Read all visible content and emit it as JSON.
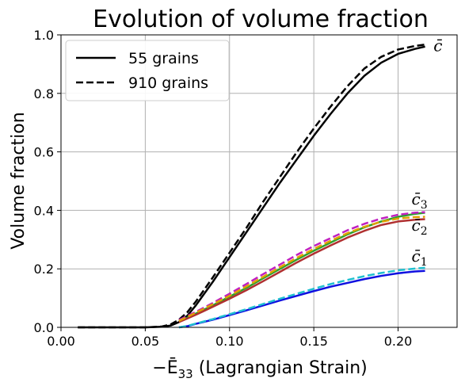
{
  "chart_data": {
    "type": "line",
    "title": "Evolution of volume fraction",
    "xlabel_prefix": "−Ē",
    "xlabel_sub": "33",
    "xlabel_suffix": " (Lagrangian Strain)",
    "ylabel": "Volume fraction",
    "xlim": [
      0.0,
      0.235
    ],
    "ylim": [
      0.0,
      1.0
    ],
    "xticks": [
      0.0,
      0.05,
      0.1,
      0.15,
      0.2
    ],
    "xtick_labels": [
      "0.00",
      "0.05",
      "0.10",
      "0.15",
      "0.20"
    ],
    "yticks": [
      0.0,
      0.2,
      0.4,
      0.6,
      0.8,
      1.0
    ],
    "ytick_labels": [
      "0.0",
      "0.2",
      "0.4",
      "0.6",
      "0.8",
      "1.0"
    ],
    "grid": true,
    "legend": {
      "placement": "top-left",
      "entries": [
        {
          "label": "55 grains",
          "dash": "solid",
          "color": "#000000"
        },
        {
          "label": "910 grains",
          "dash": "dashed",
          "color": "#000000"
        }
      ]
    },
    "series": [
      {
        "group": "c",
        "dash": "solid",
        "color": "#000000",
        "x": [
          0.01,
          0.05,
          0.06,
          0.065,
          0.07,
          0.075,
          0.08,
          0.09,
          0.1,
          0.11,
          0.12,
          0.13,
          0.14,
          0.15,
          0.16,
          0.17,
          0.18,
          0.19,
          0.2,
          0.21,
          0.216
        ],
        "y": [
          0.0,
          0.0,
          0.002,
          0.006,
          0.018,
          0.04,
          0.075,
          0.155,
          0.24,
          0.325,
          0.41,
          0.495,
          0.575,
          0.655,
          0.73,
          0.8,
          0.86,
          0.905,
          0.935,
          0.952,
          0.96
        ]
      },
      {
        "group": "c",
        "dash": "dashed",
        "color": "#000000",
        "x": [
          0.01,
          0.05,
          0.06,
          0.065,
          0.07,
          0.075,
          0.08,
          0.09,
          0.1,
          0.11,
          0.12,
          0.13,
          0.14,
          0.15,
          0.16,
          0.17,
          0.18,
          0.19,
          0.2,
          0.21,
          0.216
        ],
        "y": [
          0.0,
          0.0,
          0.003,
          0.01,
          0.026,
          0.052,
          0.088,
          0.17,
          0.255,
          0.34,
          0.43,
          0.515,
          0.6,
          0.68,
          0.755,
          0.825,
          0.885,
          0.925,
          0.95,
          0.962,
          0.967
        ]
      },
      {
        "group": "c3",
        "dash": "solid",
        "color": "#2ca02c",
        "x": [
          0.07,
          0.08,
          0.09,
          0.1,
          0.11,
          0.12,
          0.13,
          0.14,
          0.15,
          0.16,
          0.17,
          0.18,
          0.19,
          0.2,
          0.21,
          0.216
        ],
        "y": [
          0.02,
          0.047,
          0.075,
          0.105,
          0.135,
          0.168,
          0.2,
          0.232,
          0.262,
          0.29,
          0.318,
          0.342,
          0.362,
          0.378,
          0.388,
          0.392
        ]
      },
      {
        "group": "c3",
        "dash": "dashed",
        "color": "#c020c0",
        "x": [
          0.07,
          0.08,
          0.09,
          0.1,
          0.11,
          0.12,
          0.13,
          0.14,
          0.15,
          0.16,
          0.17,
          0.18,
          0.19,
          0.2,
          0.21,
          0.216
        ],
        "y": [
          0.025,
          0.053,
          0.083,
          0.115,
          0.148,
          0.182,
          0.215,
          0.248,
          0.278,
          0.305,
          0.332,
          0.354,
          0.372,
          0.385,
          0.392,
          0.394
        ]
      },
      {
        "group": "c2",
        "dash": "solid",
        "color": "#b03030",
        "x": [
          0.07,
          0.08,
          0.09,
          0.1,
          0.11,
          0.12,
          0.13,
          0.14,
          0.15,
          0.16,
          0.17,
          0.18,
          0.19,
          0.2,
          0.21,
          0.216
        ],
        "y": [
          0.018,
          0.043,
          0.07,
          0.098,
          0.127,
          0.158,
          0.19,
          0.222,
          0.252,
          0.28,
          0.307,
          0.33,
          0.35,
          0.362,
          0.368,
          0.37
        ]
      },
      {
        "group": "c2",
        "dash": "dashed",
        "color": "#e0a000",
        "x": [
          0.07,
          0.08,
          0.09,
          0.1,
          0.11,
          0.12,
          0.13,
          0.14,
          0.15,
          0.16,
          0.17,
          0.18,
          0.19,
          0.2,
          0.21,
          0.216
        ],
        "y": [
          0.022,
          0.05,
          0.079,
          0.108,
          0.14,
          0.173,
          0.206,
          0.238,
          0.268,
          0.296,
          0.322,
          0.344,
          0.361,
          0.372,
          0.377,
          0.378
        ]
      },
      {
        "group": "c1",
        "dash": "solid",
        "color": "#1010e0",
        "x": [
          0.07,
          0.075,
          0.08,
          0.09,
          0.1,
          0.11,
          0.12,
          0.13,
          0.14,
          0.15,
          0.16,
          0.17,
          0.18,
          0.19,
          0.2,
          0.21,
          0.216
        ],
        "y": [
          0.0,
          0.004,
          0.012,
          0.026,
          0.042,
          0.058,
          0.075,
          0.092,
          0.108,
          0.124,
          0.139,
          0.152,
          0.165,
          0.176,
          0.185,
          0.191,
          0.193
        ]
      },
      {
        "group": "c1",
        "dash": "dashed",
        "color": "#20c0d0",
        "x": [
          0.07,
          0.075,
          0.08,
          0.09,
          0.1,
          0.11,
          0.12,
          0.13,
          0.14,
          0.15,
          0.16,
          0.17,
          0.18,
          0.19,
          0.2,
          0.21,
          0.216
        ],
        "y": [
          0.0,
          0.005,
          0.013,
          0.028,
          0.045,
          0.062,
          0.08,
          0.098,
          0.115,
          0.132,
          0.148,
          0.162,
          0.175,
          0.186,
          0.195,
          0.201,
          0.204
        ]
      }
    ],
    "annotations": [
      {
        "text": "c̄",
        "sub": "",
        "x": 0.221,
        "y": 0.945
      },
      {
        "text": "c̄",
        "sub": "3",
        "x": 0.208,
        "y": 0.42
      },
      {
        "text": "c̄",
        "sub": "2",
        "x": 0.208,
        "y": 0.33
      },
      {
        "text": "c̄",
        "sub": "1",
        "x": 0.208,
        "y": 0.225
      }
    ]
  }
}
